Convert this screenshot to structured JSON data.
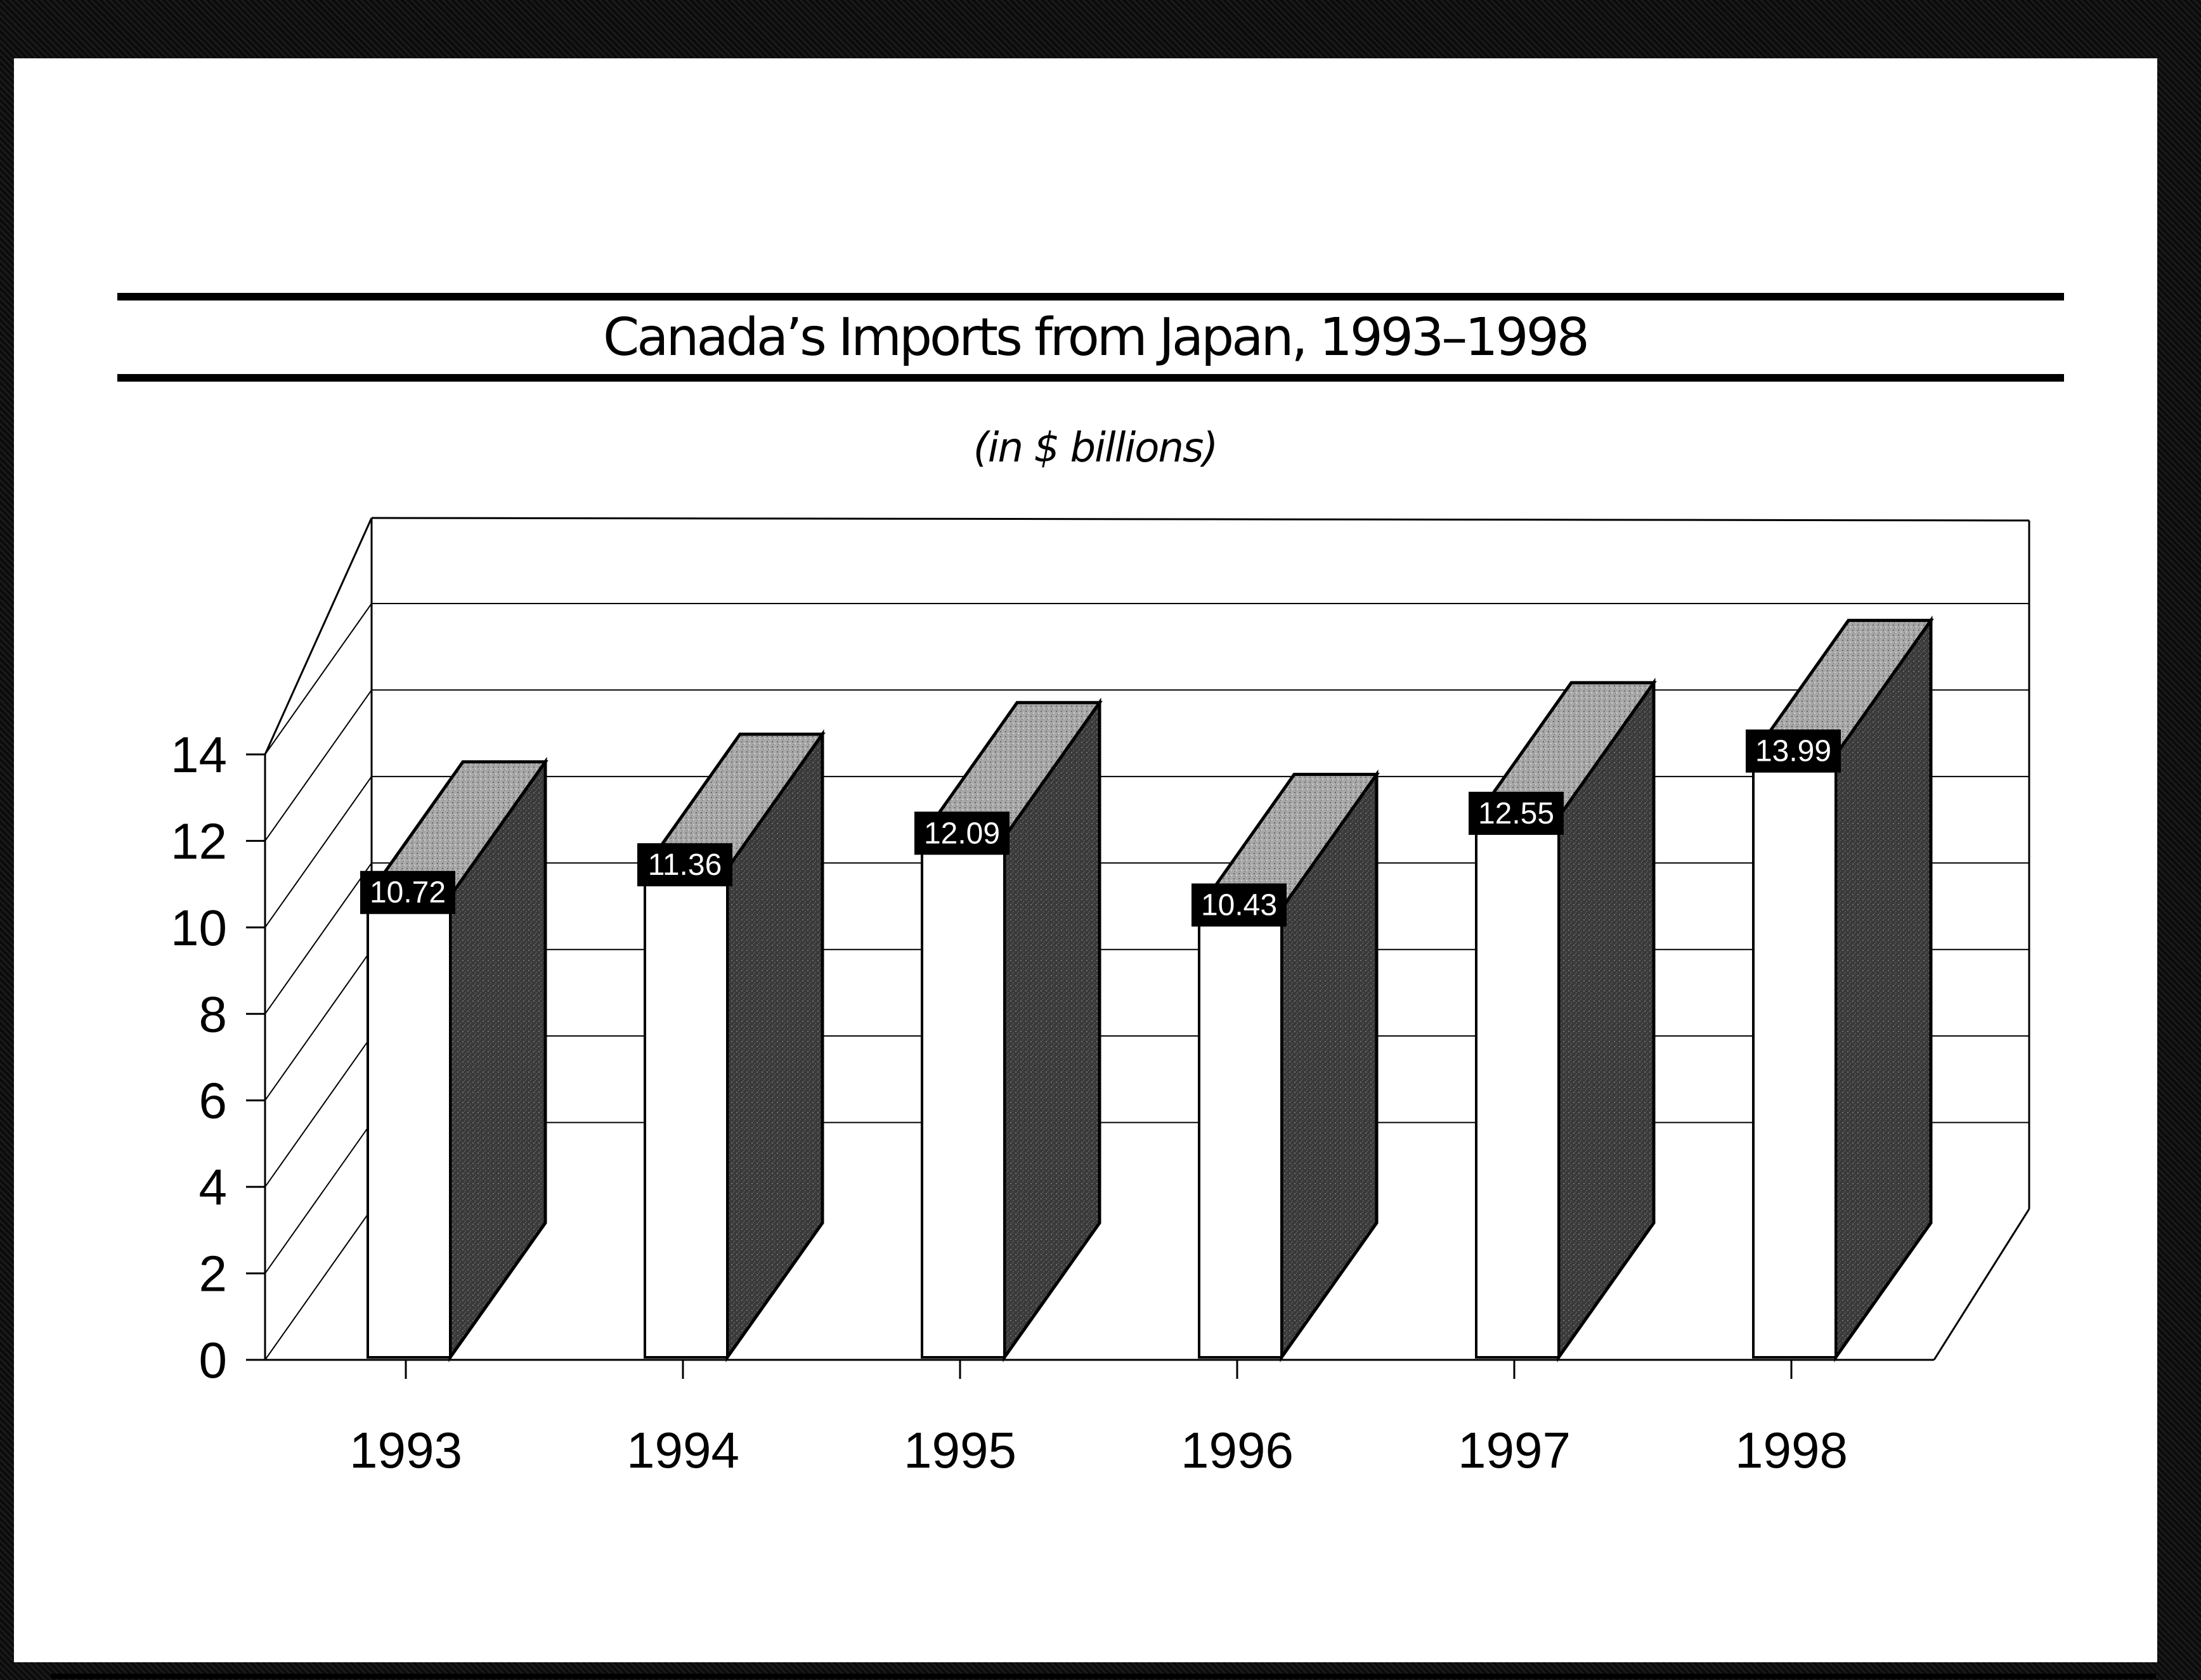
{
  "chart_data": {
    "type": "bar",
    "title": "Canada’s Imports from Japan, 1993–1998",
    "subtitle": "(in $ billions)",
    "categories": [
      "1993",
      "1994",
      "1995",
      "1996",
      "1997",
      "1998"
    ],
    "values": [
      10.72,
      11.36,
      12.09,
      10.43,
      12.55,
      13.99
    ],
    "data_labels": [
      "10.72",
      "11.36",
      "12.09",
      "10.43",
      "12.55",
      "13.99"
    ],
    "yticks": [
      "0",
      "2",
      "4",
      "6",
      "8",
      "10",
      "12",
      "14"
    ],
    "ylim": [
      0,
      14
    ],
    "grid": true,
    "style": "3d",
    "colors": {
      "bar_front": "#ffffff",
      "bar_side": "#3a3a3a",
      "bar_top": "#9a9a9a",
      "label_bg": "#000000",
      "label_text": "#ffffff"
    }
  }
}
